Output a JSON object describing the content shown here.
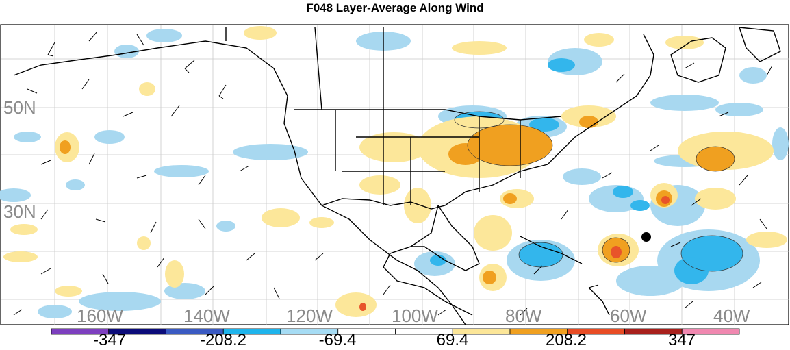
{
  "title": "F048 Layer-Average Along Wind",
  "map": {
    "latitude_labels": [
      "50N",
      "30N"
    ],
    "longitude_labels": [
      "160W",
      "140W",
      "120W",
      "100W",
      "80W",
      "60W",
      "40W"
    ],
    "contour_colors": {
      "weak_negative": "#a8d8f0",
      "negative": "#33b6ec",
      "weak_positive": "#fce79a",
      "positive": "#f0a020",
      "strong_positive": "#e8542a"
    },
    "marker": "black-dot",
    "wind_symbol": "wind-barb"
  },
  "colorbar": {
    "colors": [
      "#7d3fbf",
      "#0c0c7a",
      "#3a5ac2",
      "#1eb4ec",
      "#a6dcf4",
      "#ffffff",
      "#ffffff",
      "#fce698",
      "#f0a020",
      "#e84c24",
      "#a8201c",
      "#f088b0"
    ],
    "labels": [
      "-347",
      "-208.2",
      "-69.4",
      "69.4",
      "208.2",
      "347"
    ]
  }
}
